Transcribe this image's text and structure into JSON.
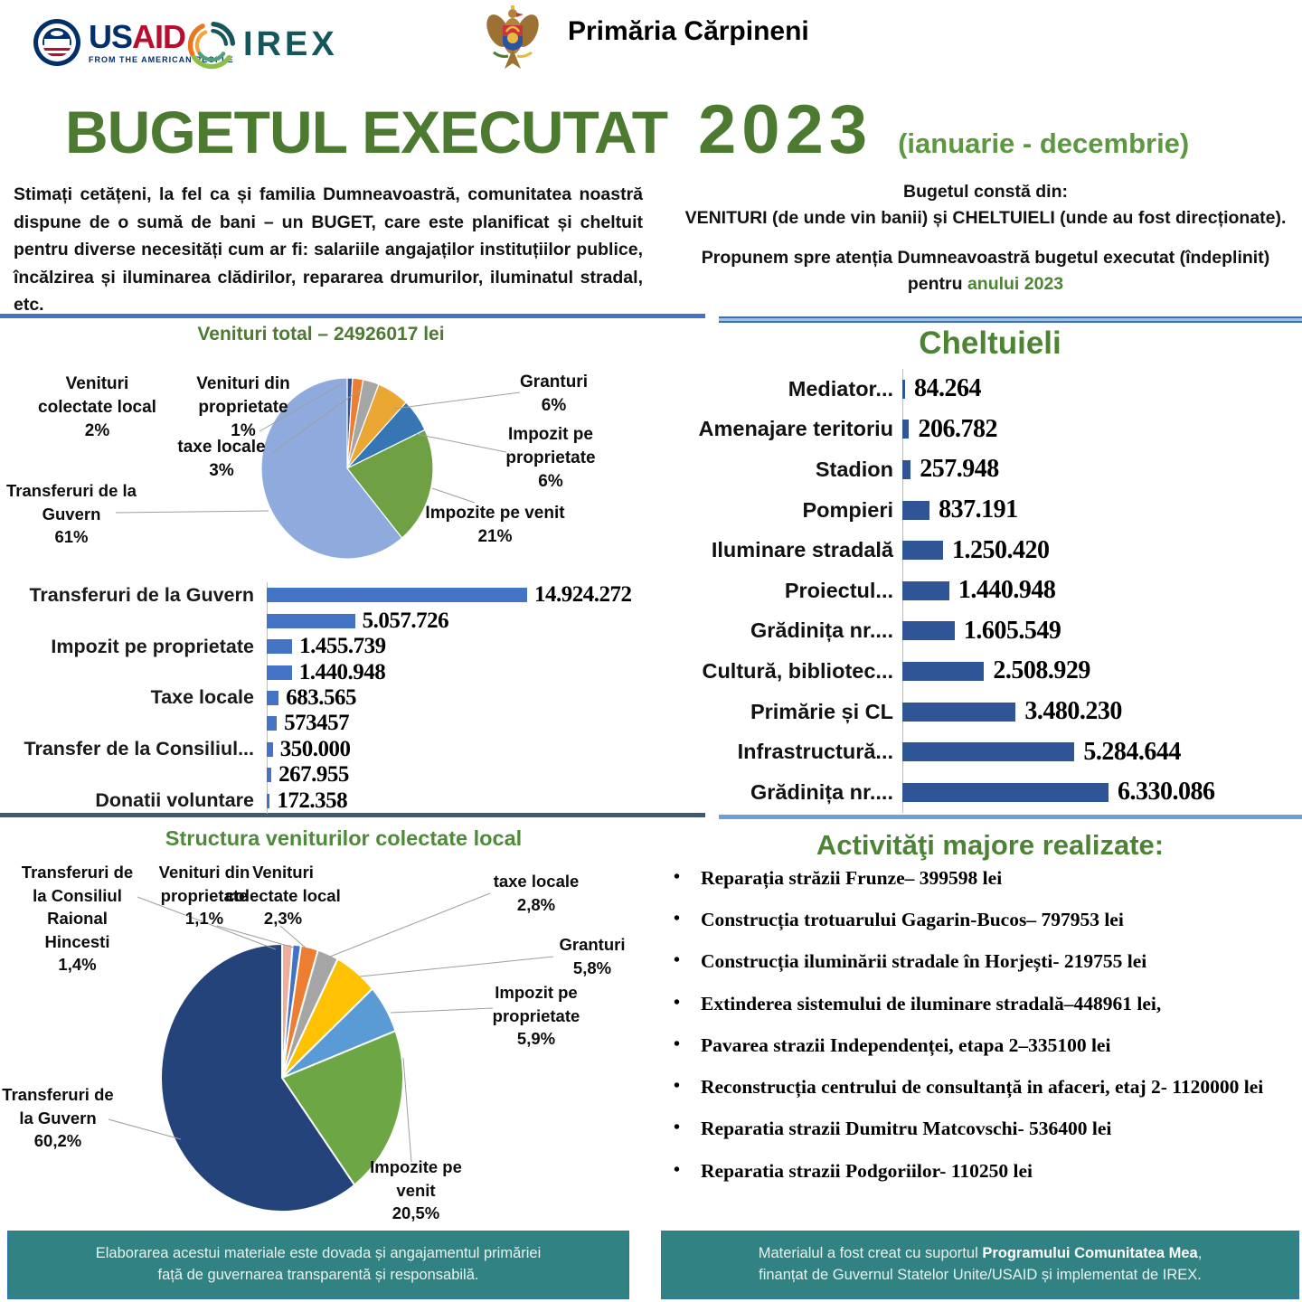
{
  "header": {
    "usaid_logo": {
      "us": "US",
      "aid": "AID",
      "tagline": "FROM THE AMERICAN PEOPLE",
      "navy": "#002F6C",
      "red": "#BA0C2F"
    },
    "irex_logo": {
      "label": "IREX",
      "teal": "#15565A",
      "orange": "#E87722",
      "amber": "#F2A33C",
      "green": "#8CBF43"
    },
    "municipality": "Primăria Cărpineni"
  },
  "title": {
    "main": "BUGETUL EXECUTAT",
    "year": "2023",
    "period": "(ianuarie - decembrie)"
  },
  "intro": {
    "left_paragraph": "Stimați cetățeni, la fel ca și familia Dumneavoastră, comunitatea noastră dispune de o sumă de bani – un BUGET, care este planificat și cheltuit pentru diverse necesități cum ar fi: salariile angajaților instituțiilor publice, încălzirea și iluminarea clădirilor, repararea drumurilor, iluminatul stradal, etc.",
    "right_line1": "Bugetul constă din:",
    "right_line2_b1": "VENITURI",
    "right_line2_t1": " (de unde vin banii) și ",
    "right_line2_b2": "CHELTUIELI",
    "right_line2_t2": " (unde au fost direcționate).",
    "right_line3_prefix": "Propunem spre atenția Dumneavoastră bugetul executat (îndeplinit) pentru ",
    "right_line3_highlight": "anului 2023"
  },
  "chart_data": [
    {
      "type": "pie",
      "title": "Venituri total – 24926017 lei",
      "legend": "callout-labels",
      "slices": [
        {
          "label": "Venituri din proprietate",
          "pct": 1,
          "pct_text": "1%",
          "color": "#2F5597"
        },
        {
          "label": "Venituri colectate local",
          "pct": 2,
          "pct_text": "2%",
          "color": "#ED7D31"
        },
        {
          "label": "taxe locale",
          "pct": 3,
          "pct_text": "3%",
          "color": "#A6A6A6"
        },
        {
          "label": "Granturi",
          "pct": 6,
          "pct_text": "6%",
          "color": "#EAA734"
        },
        {
          "label": "Impozit pe proprietate",
          "pct": 6,
          "pct_text": "6%",
          "color": "#3776B4"
        },
        {
          "label": "Impozite pe venit",
          "pct": 21,
          "pct_text": "21%",
          "color": "#6FA044"
        },
        {
          "label": "Transferuri de la Guvern",
          "pct": 61,
          "pct_text": "61%",
          "color": "#8FAADC"
        }
      ]
    },
    {
      "type": "bar",
      "orientation": "horizontal",
      "title": "",
      "bar_color": "#4472C4",
      "categories": [
        "Transferuri de la Guvern",
        "",
        "Impozit pe proprietate",
        "",
        "Taxe locale",
        "",
        "Transfer de la Consiliul...",
        "",
        "Donatii voluntare"
      ],
      "values": [
        14924272,
        5057726,
        1455739,
        1440948,
        683565,
        573457,
        350000,
        267955,
        172358
      ],
      "value_labels": [
        "14.924.272",
        "5.057.726",
        "1.455.739",
        "1.440.948",
        "683.565",
        "573457",
        "350.000",
        "267.955",
        "172.358"
      ]
    },
    {
      "type": "bar",
      "orientation": "horizontal",
      "title": "Cheltuieli",
      "bar_color": "#2F5597",
      "categories": [
        "Mediator...",
        "Amenajare teritoriu",
        "Stadion",
        "Pompieri",
        "Iluminare stradală",
        "Proiectul...",
        "Grădinița nr....",
        "Cultură, bibliotec...",
        "Primărie și CL",
        "Infrastructură...",
        "Grădinița nr...."
      ],
      "values": [
        84264,
        206782,
        257948,
        837191,
        1250420,
        1440948,
        1605549,
        2508929,
        3480230,
        5284644,
        6330086
      ],
      "value_labels": [
        "84.264",
        "206.782",
        "257.948",
        "837.191",
        "1.250.420",
        "1.440.948",
        "1.605.549",
        "2.508.929",
        "3.480.230",
        "5.284.644",
        "6.330.086"
      ]
    },
    {
      "type": "pie",
      "title": "Structura veniturilor colectate local",
      "legend": "callout-labels",
      "slices": [
        {
          "label": "Transferuri de la Consiliul Raional Hincesti",
          "pct": 1.4,
          "pct_text": "1,4%",
          "color": "#EFAE9C"
        },
        {
          "label": "Venituri din proprietate",
          "pct": 1.1,
          "pct_text": "1,1%",
          "color": "#4472C4"
        },
        {
          "label": "Venituri colectate local",
          "pct": 2.3,
          "pct_text": "2,3%",
          "color": "#ED7D31"
        },
        {
          "label": "taxe locale",
          "pct": 2.8,
          "pct_text": "2,8%",
          "color": "#A5A5A5"
        },
        {
          "label": "Granturi",
          "pct": 5.8,
          "pct_text": "5,8%",
          "color": "#FFC103"
        },
        {
          "label": "Impozit pe proprietate",
          "pct": 5.9,
          "pct_text": "5,9%",
          "color": "#5B9BD5"
        },
        {
          "label": "Impozite pe venit",
          "pct": 20.5,
          "pct_text": "20,5%",
          "color": "#6CA645"
        },
        {
          "label": "Transferuri de la Guvern",
          "pct": 60.2,
          "pct_text": "60,2%",
          "color": "#25437B"
        }
      ]
    }
  ],
  "activities": {
    "title": "Activităţi majore realizate:",
    "items": [
      "Reparația străzii Frunze– 399598 lei",
      "Construcția trotuarului Gagarin-Bucos– 797953 lei",
      "Construcția iluminării stradale în Horjești- 219755 lei",
      "Extinderea sistemului de iluminare stradală–448961 lei,",
      "Pavarea strazii Independenței, etapa 2–335100 lei",
      "Reconstrucția centrului de consultanță in afaceri, etaj 2- 1120000 lei",
      "Reparatia strazii Dumitru Matcovschi- 536400 lei",
      "Reparatia strazii Podgoriilor- 110250 lei"
    ]
  },
  "footers": {
    "left_line1": "Elaborarea acestui materiale este dovada și angajamentul primăriei",
    "left_line2": "față de guvernarea transparentă și responsabilă.",
    "right_prefix": "Materialul a fost creat cu suportul ",
    "right_bold": "Programului Comunitatea Mea",
    "right_suffix": ",",
    "right_line2": "finanțat de Guvernul Statelor Unite/USAID și implementat de IREX.",
    "teal_color": "#318383"
  }
}
